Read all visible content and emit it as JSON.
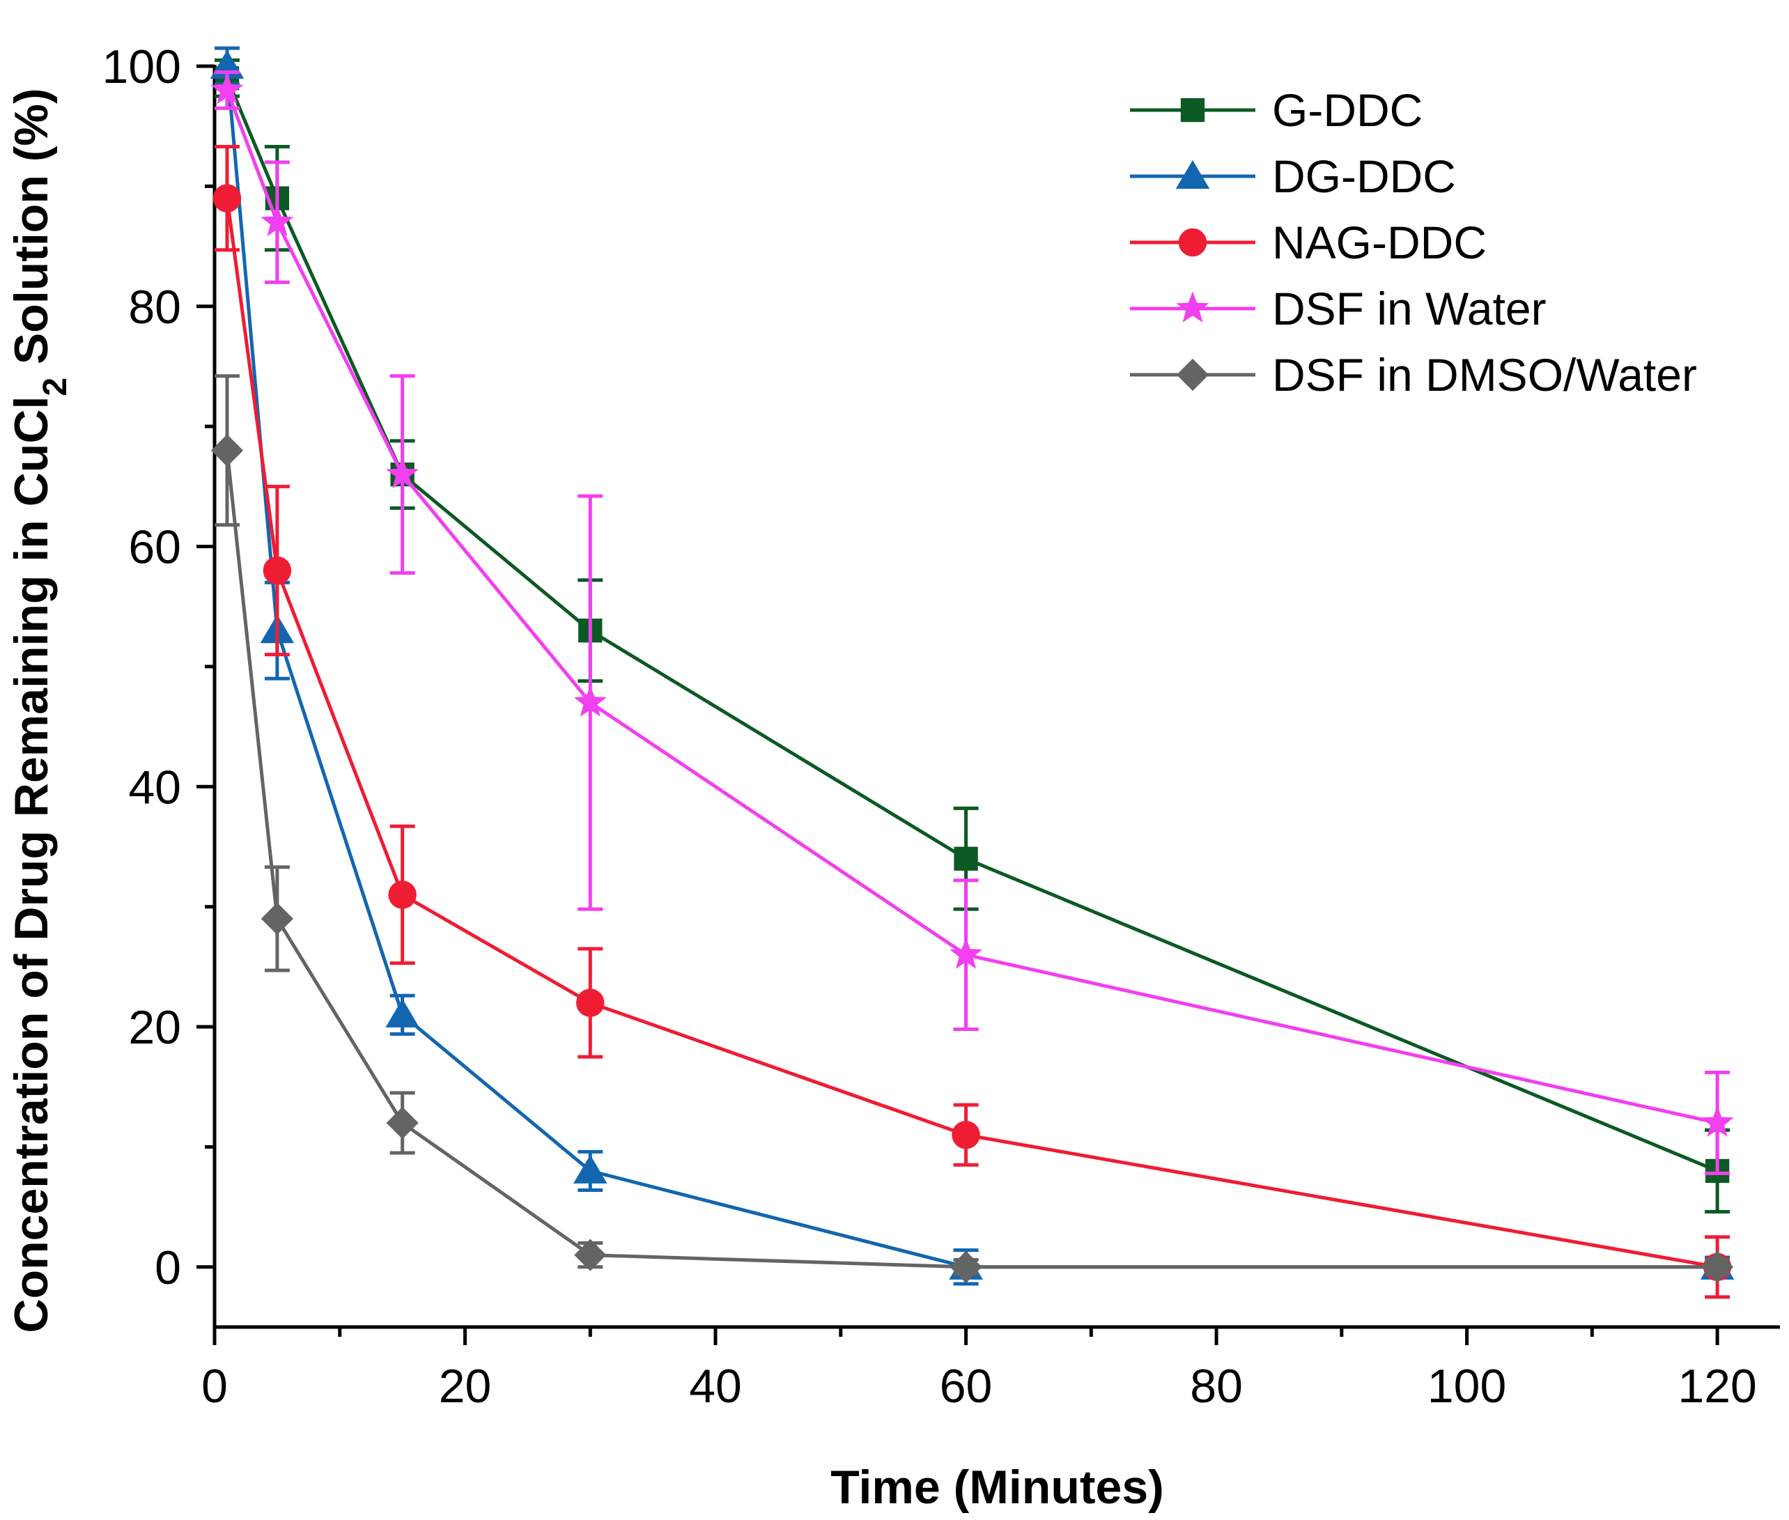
{
  "chart_data": {
    "type": "line",
    "title": "",
    "xlabel": "Time (Minutes)",
    "ylabel_prefix": "Concentration of Drug Remaining in CuCl",
    "ylabel_subscript": "2",
    "ylabel_suffix": " Solution (%)",
    "xlim": [
      0,
      125
    ],
    "ylim": [
      -5,
      100
    ],
    "x_ticks": [
      0,
      20,
      40,
      60,
      80,
      100,
      120
    ],
    "y_ticks": [
      0,
      20,
      40,
      60,
      80,
      100
    ],
    "x_minor_ticks": [
      10,
      30,
      50,
      70,
      90,
      110
    ],
    "y_minor_ticks": [
      10,
      30,
      50,
      70,
      90
    ],
    "x_tick_labels": [
      "0",
      "20",
      "40",
      "60",
      "80",
      "100",
      "120"
    ],
    "y_tick_labels": [
      "0",
      "20",
      "40",
      "60",
      "80",
      "100"
    ],
    "legend_position": "top-right",
    "x": [
      1,
      5,
      15,
      30,
      60,
      120
    ],
    "series": [
      {
        "name": "G-DDC",
        "color": "#0b5a23",
        "marker": "square",
        "values": [
          99,
          89,
          66,
          53,
          34,
          8
        ],
        "errors": [
          1.5,
          4.3,
          2.8,
          4.2,
          4.2,
          3.4
        ]
      },
      {
        "name": "DG-DDC",
        "color": "#1266b0",
        "marker": "triangle",
        "values": [
          100,
          53,
          21,
          8,
          0,
          0
        ],
        "errors": [
          1.5,
          4.0,
          1.6,
          1.6,
          1.4,
          0.8
        ]
      },
      {
        "name": "NAG-DDC",
        "color": "#ee1d34",
        "marker": "circle",
        "values": [
          89,
          58,
          31,
          22,
          11,
          0
        ],
        "errors": [
          4.3,
          7.0,
          5.7,
          4.5,
          2.5,
          2.5
        ]
      },
      {
        "name": "DSF in Water",
        "color": "#f23fef",
        "marker": "star",
        "values": [
          98,
          87,
          66,
          47,
          26,
          12
        ],
        "errors": [
          1.5,
          5.0,
          8.2,
          17.2,
          6.2,
          4.2
        ]
      },
      {
        "name": "DSF in DMSO/Water",
        "color": "#646464",
        "marker": "diamond",
        "values": [
          68,
          29,
          12,
          1,
          0,
          0
        ],
        "errors": [
          6.2,
          4.3,
          2.5,
          1.0,
          0.6,
          0.6
        ]
      }
    ]
  }
}
